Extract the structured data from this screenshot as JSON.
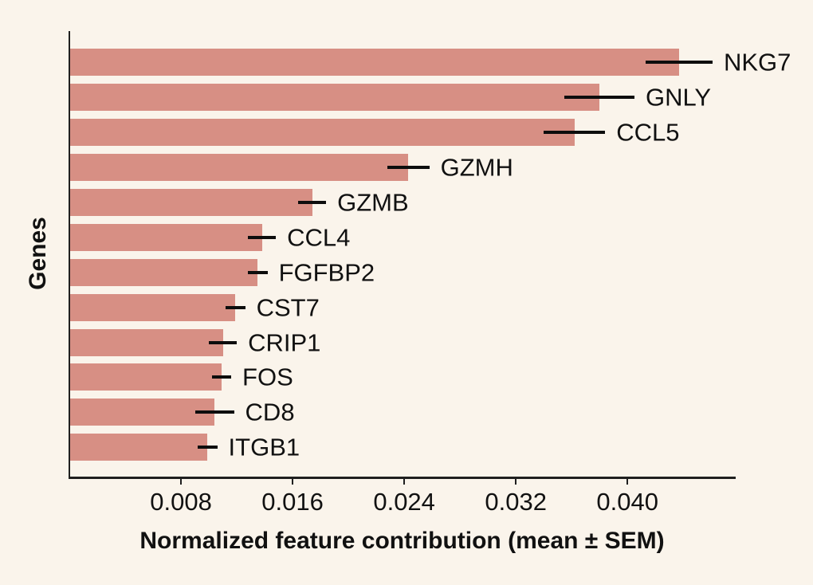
{
  "figure": {
    "background_color": "#faf4eb",
    "bar_color": "#d78f84",
    "axis_color": "#1f1f1f",
    "error_bar_color": "#0d0d0d",
    "text_color": "#111111"
  },
  "chart_data": {
    "type": "bar",
    "orientation": "horizontal",
    "title": "",
    "xlabel": "Normalized feature contribution (mean ± SEM)",
    "ylabel": "Genes",
    "xlim": [
      0,
      0.0477
    ],
    "x_ticks": [
      0.008,
      0.016,
      0.024,
      0.032,
      0.04
    ],
    "x_tick_labels": [
      "0.008",
      "0.016",
      "0.024",
      "0.032",
      "0.040"
    ],
    "grid": false,
    "legend": null,
    "categories": [
      "NKG7",
      "GNLY",
      "CCL5",
      "GZMH",
      "GZMB",
      "CCL4",
      "FGFBP2",
      "CST7",
      "CRIP1",
      "FOS",
      "CD8",
      "ITGB1"
    ],
    "series": [
      {
        "name": "Normalized feature contribution (mean)",
        "values": [
          0.0437,
          0.038,
          0.0362,
          0.0243,
          0.0174,
          0.0138,
          0.0135,
          0.0119,
          0.011,
          0.0109,
          0.0104,
          0.0099
        ],
        "sem": [
          0.0024,
          0.0025,
          0.0022,
          0.0015,
          0.001,
          0.001,
          0.0007,
          0.0007,
          0.001,
          0.0007,
          0.0014,
          0.0007
        ]
      }
    ]
  }
}
